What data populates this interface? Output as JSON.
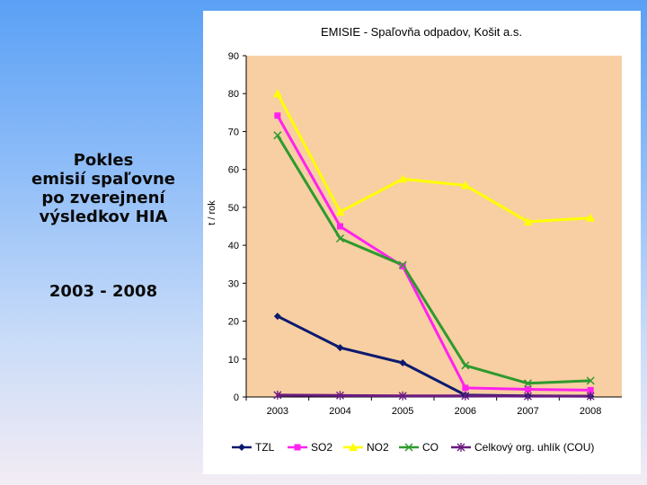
{
  "side": {
    "lines": [
      "Pokles",
      "emisií spaľovne",
      "po zverejnení",
      "výsledkov HIA"
    ],
    "years": "2003 - 2008"
  },
  "chart_data": {
    "type": "line",
    "title": "EMISIE - Spaľovňa odpadov, Košit a.s.",
    "xlabel": "",
    "ylabel": "t / rok",
    "categories": [
      "2003",
      "2004",
      "2005",
      "2006",
      "2007",
      "2008"
    ],
    "ylim": [
      0,
      90
    ],
    "yticks": [
      0,
      10,
      20,
      30,
      40,
      50,
      60,
      70,
      80,
      90
    ],
    "grid": false,
    "legend_position": "bottom",
    "plot_background": "#f8cfa2",
    "series": [
      {
        "name": "TZL",
        "color": "#0c1a6e",
        "marker": "diamond",
        "values": [
          21.3,
          13,
          9,
          0.5,
          0.3,
          0.2
        ]
      },
      {
        "name": "SO2",
        "color": "#ff22ee",
        "marker": "square",
        "values": [
          74.2,
          45,
          34.5,
          2.4,
          2.0,
          1.8
        ]
      },
      {
        "name": "NO2",
        "color": "#ffff00",
        "marker": "triangle",
        "values": [
          80,
          48.8,
          57.5,
          55.8,
          46.2,
          47.2
        ]
      },
      {
        "name": "CO",
        "color": "#2e9a2e",
        "marker": "x",
        "values": [
          69,
          41.8,
          34.8,
          8.3,
          3.6,
          4.3
        ]
      },
      {
        "name": "Celkový org. uhlík (COU)",
        "color": "#6a1a80",
        "marker": "star",
        "values": [
          0.5,
          0.4,
          0.3,
          0.3,
          0.2,
          0.2
        ]
      }
    ]
  }
}
